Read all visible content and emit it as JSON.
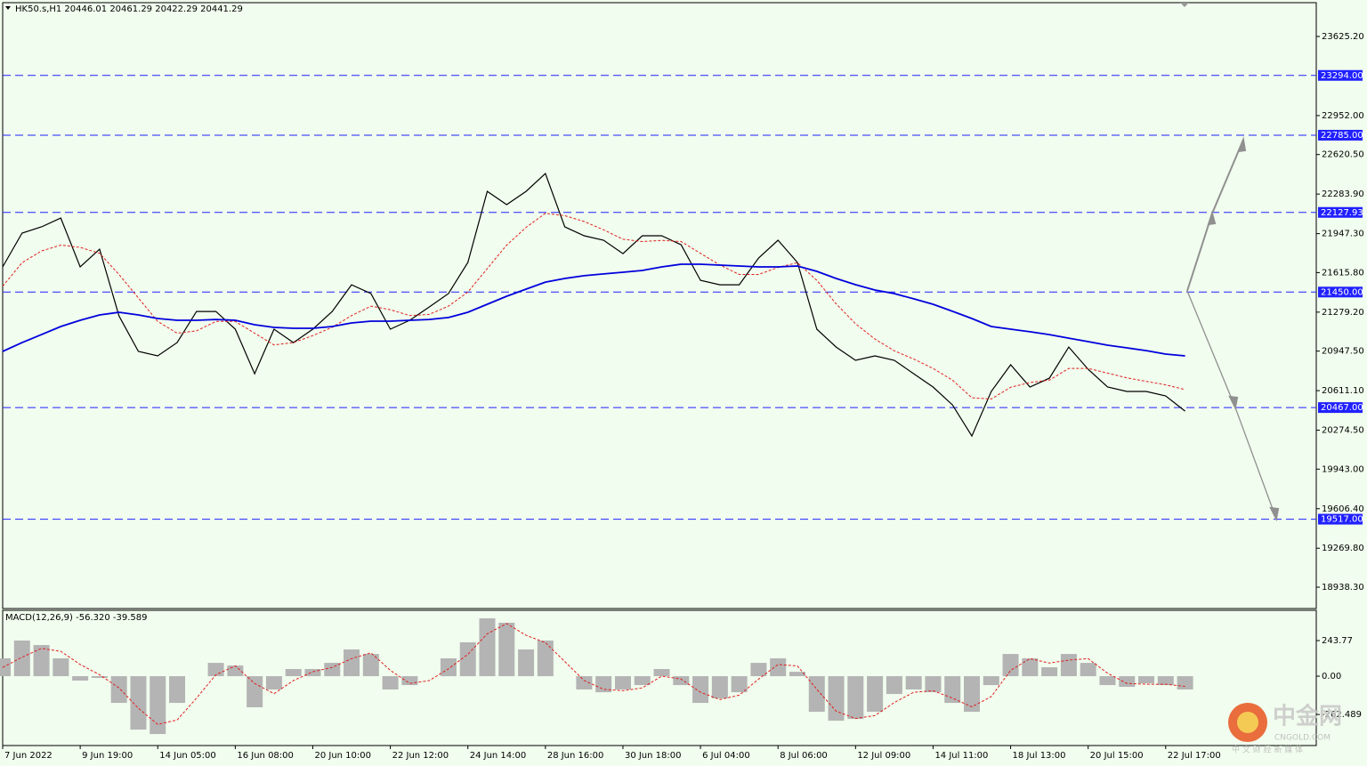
{
  "chart_data": [
    {
      "type": "line",
      "title": "HK50.s,H1  20446.01 20461.29 20422.29 20441.29",
      "ylim": [
        18756.6,
        23913.0
      ],
      "yticks": [
        {
          "value": 23625.2,
          "label": "23625.20"
        },
        {
          "value": 22952,
          "label": "22952.00"
        },
        {
          "value": 22620.5,
          "label": "22620.50"
        },
        {
          "value": 22283.9,
          "label": "22283.90"
        },
        {
          "value": 21947.3,
          "label": "21947.30"
        },
        {
          "value": 21615.8,
          "label": "21615.80"
        },
        {
          "value": 21279.2,
          "label": "21279.20"
        },
        {
          "value": 20947.5,
          "label": "20947.50"
        },
        {
          "value": 20611.1,
          "label": "20611.10"
        },
        {
          "value": 20274.5,
          "label": "20274.50"
        },
        {
          "value": 19943,
          "label": "19943.00"
        },
        {
          "value": 19606.4,
          "label": "19606.40"
        },
        {
          "value": 19269.8,
          "label": "19269.80"
        },
        {
          "value": 18938.3,
          "label": "18938.30"
        }
      ],
      "levels": [
        {
          "value": 23294,
          "label": "23294.00"
        },
        {
          "value": 22785,
          "label": "22785.00"
        },
        {
          "value": 22127.93,
          "label": "22127.93"
        },
        {
          "value": 21450,
          "label": "21450.00"
        },
        {
          "value": 20467,
          "label": "20467.00"
        },
        {
          "value": 19517,
          "label": "19517.00"
        }
      ],
      "level_color": "#2020ff",
      "series": [
        {
          "color": "#000000",
          "values": [
            21664,
            21952,
            22005,
            22080,
            21664,
            21815,
            21247,
            20945,
            20907,
            21020,
            21285,
            21285,
            21134,
            20755,
            21134,
            21020,
            21134,
            21285,
            21512,
            21437,
            21134,
            21210,
            21323,
            21437,
            21702,
            22307,
            22194,
            22307,
            22459,
            22005,
            21929,
            21891,
            21777,
            21929,
            21929,
            21853,
            21550,
            21512,
            21512,
            21740,
            21891,
            21702,
            21134,
            20982,
            20869,
            20907,
            20869,
            20755,
            20642,
            20490,
            20225,
            20604,
            20831,
            20642,
            20717,
            20982,
            20793,
            20642,
            20604,
            20604,
            20566,
            20437
          ]
        },
        {
          "color": "#e02020",
          "dashed": true,
          "values": [
            21500,
            21700,
            21800,
            21850,
            21830,
            21780,
            21600,
            21400,
            21200,
            21100,
            21120,
            21200,
            21200,
            21100,
            21000,
            21020,
            21080,
            21150,
            21250,
            21330,
            21300,
            21250,
            21260,
            21330,
            21450,
            21650,
            21850,
            22000,
            22120,
            22100,
            22050,
            21980,
            21900,
            21880,
            21890,
            21880,
            21780,
            21680,
            21600,
            21600,
            21660,
            21700,
            21550,
            21350,
            21180,
            21050,
            20950,
            20880,
            20800,
            20700,
            20550,
            20540,
            20640,
            20680,
            20700,
            20800,
            20800,
            20760,
            20720,
            20690,
            20660,
            20620
          ]
        },
        {
          "color": "#0000dd",
          "values": [
            20945,
            21020,
            21088,
            21157,
            21210,
            21255,
            21278,
            21255,
            21225,
            21210,
            21210,
            21217,
            21210,
            21172,
            21149,
            21142,
            21142,
            21157,
            21187,
            21202,
            21202,
            21210,
            21217,
            21233,
            21278,
            21346,
            21414,
            21475,
            21535,
            21566,
            21589,
            21604,
            21619,
            21634,
            21664,
            21687,
            21687,
            21679,
            21672,
            21664,
            21664,
            21672,
            21626,
            21566,
            21513,
            21467,
            21437,
            21392,
            21346,
            21286,
            21225,
            21157,
            21134,
            21112,
            21088,
            21058,
            21028,
            20998,
            20975,
            20952,
            20922,
            20907
          ]
        }
      ]
    },
    {
      "type": "bar",
      "title": "MACD(12,26,9) -56.320 -39.589",
      "ylim": [
        -475,
        451
      ],
      "yticks": [
        243.77,
        {
          "value": 0,
          "label": "0.00"
        },
        -262.489
      ],
      "categories": [
        "7 Jun 2022",
        null,
        null,
        null,
        "9 Jun 19:00",
        null,
        null,
        null,
        "14 Jun 05:00",
        null,
        null,
        null,
        "16 Jun 08:00",
        null,
        null,
        null,
        "20 Jun 10:00",
        null,
        null,
        null,
        "22 Jun 12:00",
        null,
        null,
        null,
        "24 Jun 14:00",
        null,
        null,
        null,
        "28 Jun 16:00",
        null,
        null,
        null,
        "30 Jun 18:00",
        null,
        null,
        null,
        "6 Jul 04:00",
        null,
        null,
        null,
        "8 Jul 06:00",
        null,
        null,
        null,
        "12 Jul 09:00",
        null,
        null,
        null,
        "14 Jul 11:00",
        null,
        null,
        null,
        "18 Jul 13:00",
        null,
        null,
        null,
        "20 Jul 15:00",
        null,
        null,
        null,
        "22 Jul 17:00",
        null
      ],
      "series": [
        {
          "type": "bar",
          "color": "#b4b4b4",
          "values": [
            122,
            244,
            213,
            122,
            -30,
            -12,
            -183,
            -366,
            -396,
            -183,
            0,
            91,
            73,
            -213,
            -91,
            49,
            49,
            91,
            183,
            152,
            -91,
            -61,
            0,
            122,
            232,
            396,
            366,
            183,
            244,
            0,
            -91,
            -110,
            -91,
            -61,
            49,
            -61,
            -183,
            -152,
            -110,
            91,
            122,
            30,
            -244,
            -305,
            -293,
            -244,
            -122,
            -91,
            -110,
            -183,
            -244,
            -61,
            152,
            122,
            61,
            152,
            91,
            -61,
            -73,
            -49,
            -61,
            -91
          ]
        },
        {
          "type": "line",
          "color": "#e02020",
          "dashed": true,
          "values": [
            60,
            130,
            190,
            170,
            80,
            10,
            -80,
            -220,
            -330,
            -300,
            -150,
            10,
            70,
            -50,
            -120,
            -30,
            30,
            60,
            120,
            160,
            40,
            -50,
            -30,
            50,
            150,
            290,
            360,
            280,
            230,
            100,
            -30,
            -90,
            -100,
            -80,
            0,
            -20,
            -110,
            -160,
            -130,
            -20,
            80,
            70,
            -90,
            -240,
            -290,
            -270,
            -180,
            -110,
            -100,
            -150,
            -210,
            -140,
            40,
            120,
            90,
            110,
            120,
            20,
            -50,
            -55,
            -55,
            -70
          ]
        }
      ]
    }
  ],
  "watermark": {
    "name": "中金网",
    "site": "CNGOLD.COM",
    "slogan": "中 文 财 经 新 媒 体"
  }
}
